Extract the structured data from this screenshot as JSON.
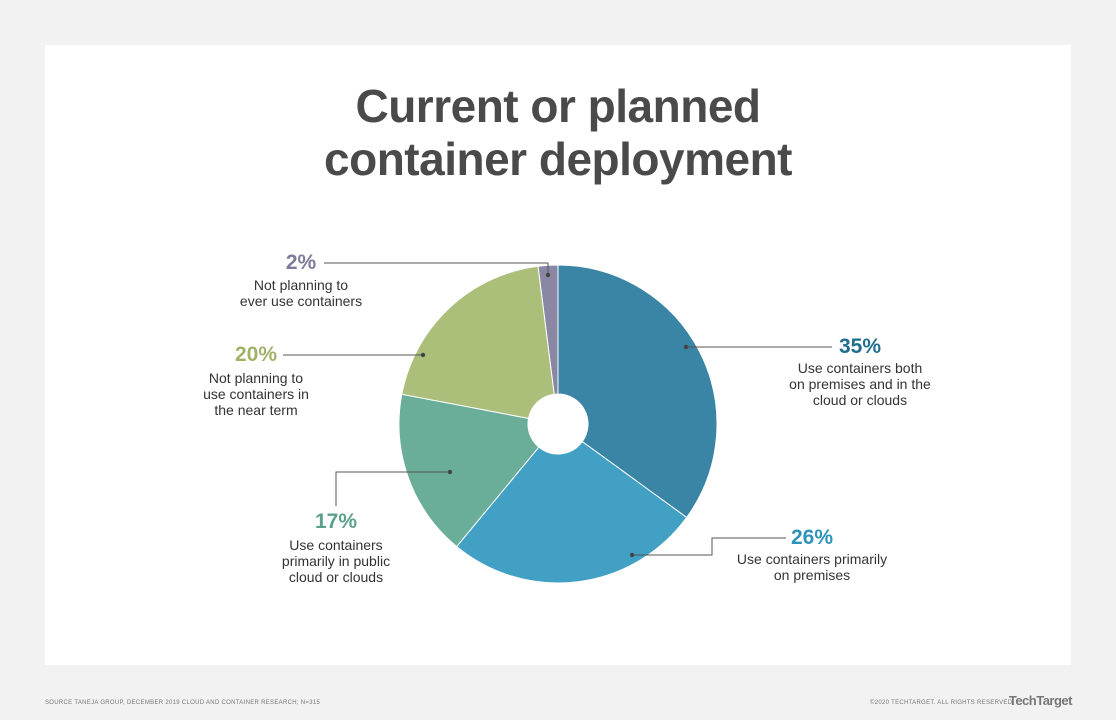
{
  "chart_data": {
    "type": "pie",
    "title": "Current or planned\ncontainer deployment",
    "categories": [
      "Use containers both\non premises and in the\ncloud or clouds",
      "Use containers primarily\non premises",
      "Use containers\nprimarily in public\ncloud or clouds",
      "Not planning to\nuse containers in\nthe near term",
      "Not planning to\never use containers"
    ],
    "values": [
      35,
      26,
      17,
      20,
      2
    ],
    "value_labels": [
      "35%",
      "26%",
      "17%",
      "20%",
      "2%"
    ],
    "colors": [
      "#3a84a6",
      "#41a0c4",
      "#6aae9a",
      "#abbf7b",
      "#8a87a5"
    ],
    "label_colors": [
      "#1f6e8f",
      "#2e93b8",
      "#5aa08a",
      "#a0b26a",
      "#7d7a9c"
    ],
    "source": "SOURCE TANEJA GROUP, DECEMBER 2019 CLOUD AND CONTAINER RESEARCH; N=315",
    "copyright": "©2020 TECHTARGET. ALL RIGHTS RESERVED",
    "logo": "TechTarget"
  }
}
